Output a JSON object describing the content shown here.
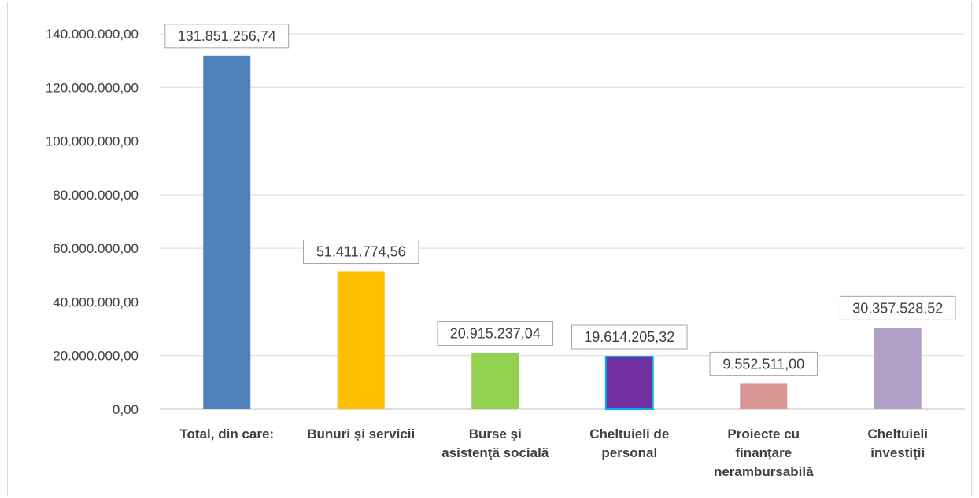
{
  "chart_data": {
    "type": "bar",
    "categories": [
      [
        "Total, din care:"
      ],
      [
        "Bunuri și servicii"
      ],
      [
        "Burse şi",
        "asistenţă socială"
      ],
      [
        "Cheltuieli de",
        "personal"
      ],
      [
        "Proiecte cu",
        "finanțare",
        "nerambursabilă"
      ],
      [
        "Cheltuieli",
        "investiții"
      ]
    ],
    "values": [
      131851256.74,
      51411774.56,
      20915237.04,
      19614205.32,
      9552511.0,
      30357528.52
    ],
    "data_labels": [
      "131.851.256,74",
      "51.411.774,56",
      "20.915.237,04",
      "19.614.205,32",
      "9.552.511,00",
      "30.357.528,52"
    ],
    "bar_colors": [
      "#4f81bd",
      "#ffc000",
      "#92d050",
      "#7030a0",
      "#d99694",
      "#b1a0c7"
    ],
    "bar_outlines": [
      "none",
      "none",
      "none",
      "#00b0f0",
      "none",
      "none"
    ],
    "ylim": [
      0,
      140000000
    ],
    "yticks": [
      0,
      20000000,
      40000000,
      60000000,
      80000000,
      100000000,
      120000000,
      140000000
    ],
    "ytick_labels": [
      "0,00",
      "20.000.000,00",
      "40.000.000,00",
      "60.000.000,00",
      "80.000.000,00",
      "100.000.000,00",
      "120.000.000,00",
      "140.000.000,00"
    ],
    "grid": true,
    "title": "",
    "xlabel": "",
    "ylabel": ""
  }
}
